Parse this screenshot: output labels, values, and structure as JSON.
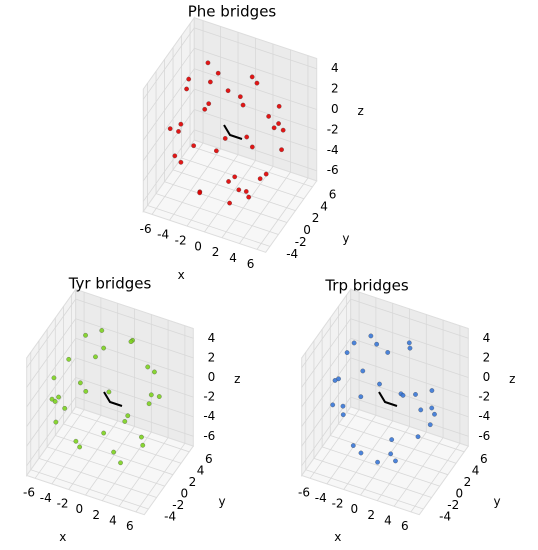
{
  "chart_data": [
    {
      "type": "scatter3d",
      "title": "Phe bridges",
      "xlabel": "x",
      "ylabel": "y",
      "zlabel": "z",
      "color": "#e00000",
      "xlim": [
        -7,
        7
      ],
      "ylim": [
        -5,
        7
      ],
      "zlim": [
        -7,
        5
      ],
      "xticks": [
        -6,
        -4,
        -2,
        0,
        2,
        4,
        6
      ],
      "yticks": [
        -4,
        -2,
        0,
        2,
        4,
        6
      ],
      "zticks": [
        -6,
        -4,
        -2,
        0,
        2,
        4
      ],
      "x": [
        5.8,
        -5.5,
        3.2,
        -2.9,
        0.8,
        1.2,
        4.1,
        -4.3,
        2.5,
        -1.8,
        5.1,
        -5.0,
        0.3,
        -0.6,
        3.7,
        -3.3,
        4.6,
        -4.8,
        1.9,
        -2.1,
        2.8,
        -1.4,
        5.4,
        -3.8,
        0.9,
        -0.2,
        3.4,
        -5.6,
        4.0,
        -2.6,
        1.6,
        -3.9,
        2.2,
        -4.4,
        5.2,
        0.1,
        -1.1,
        3.0
      ],
      "y": [
        1.2,
        2.1,
        4.8,
        -4.6,
        -1.1,
        0.6,
        -3.5,
        3.9,
        2.2,
        -2.4,
        -0.4,
        -1.7,
        5.6,
        -4.9,
        1.9,
        2.6,
        3.1,
        -3.2,
        -3.0,
        4.2,
        -5.1,
        1.1,
        2.4,
        -0.9,
        4.4,
        -3.6,
        -1.6,
        0.4,
        4.2,
        -5.2,
        -5.5,
        4.4,
        0.3,
        1.5,
        -2.6,
        1.9,
        5.7,
        -2.1
      ],
      "z": [
        -0.9,
        1.3,
        -1.6,
        2.5,
        4.8,
        -5.8,
        2.6,
        -1.4,
        4.1,
        -5.1,
        3.1,
        -2.9,
        2.1,
        -3.4,
        -4.3,
        4.2,
        1.9,
        0.7,
        -4.8,
        -3.8,
        -1.2,
        4.6,
        0.2,
        4.5,
        -3.9,
        4.7,
        -4.6,
        -1.9,
        -0.6,
        -0.8,
        1.7,
        1.1,
        -5.5,
        -3.6,
        -1.7,
        -5.6,
        -0.3,
        4.6
      ]
    },
    {
      "type": "scatter3d",
      "title": "Tyr bridges",
      "xlabel": "x",
      "ylabel": "y",
      "zlabel": "z",
      "color": "#7ed321",
      "xlim": [
        -7,
        7
      ],
      "ylim": [
        -5,
        7
      ],
      "zlim": [
        -7,
        5
      ],
      "xticks": [
        -6,
        -4,
        -2,
        0,
        2,
        4,
        6
      ],
      "yticks": [
        -4,
        -2,
        0,
        2,
        4,
        6
      ],
      "zticks": [
        -6,
        -4,
        -2,
        0,
        2,
        4
      ],
      "x": [
        -5.7,
        5.3,
        -3.4,
        3.0,
        -0.9,
        -1.0,
        -4.0,
        4.4,
        -2.6,
        1.9,
        -5.2,
        4.9,
        -0.5,
        0.7,
        -3.6,
        3.1,
        -4.5,
        4.7,
        -2.0,
        2.3,
        -2.7,
        1.5,
        -5.3,
        3.9,
        -1.0,
        0.4,
        -3.3,
        5.5,
        -4.1,
        2.5
      ],
      "y": [
        -1.0,
        -2.2,
        -4.6,
        4.4,
        1.3,
        -0.5,
        3.3,
        -3.7,
        -2.0,
        2.6,
        0.6,
        1.8,
        -5.4,
        4.7,
        -1.7,
        -2.8,
        -3.0,
        3.4,
        3.1,
        -4.0,
        5.0,
        -1.2,
        -2.3,
        1.0,
        -4.2,
        3.8,
        1.8,
        -0.2,
        -4.0,
        5.1
      ],
      "z": [
        1.0,
        -1.2,
        1.8,
        -2.3,
        -4.6,
        4.2,
        -2.4,
        1.6,
        -4.0,
        4.9,
        -2.9,
        3.0,
        -2.0,
        3.2,
        3.9,
        -4.1,
        -2.0,
        -0.5,
        4.5,
        3.6,
        1.4,
        -4.4,
        -0.3,
        -4.3,
        3.7,
        -4.5,
        4.4,
        2.0,
        0.8,
        0.9
      ]
    },
    {
      "type": "scatter3d",
      "title": "Trp bridges",
      "xlabel": "x",
      "ylabel": "y",
      "zlabel": "z",
      "color": "#3a78d8",
      "xlim": [
        -7,
        7
      ],
      "ylim": [
        -5,
        7
      ],
      "zlim": [
        -7,
        5
      ],
      "xticks": [
        -6,
        -4,
        -2,
        0,
        2,
        4,
        6
      ],
      "yticks": [
        -4,
        -2,
        0,
        2,
        4,
        6
      ],
      "zticks": [
        -6,
        -4,
        -2,
        0,
        2,
        4
      ],
      "x": [
        4.9,
        -4.6,
        2.7,
        -3.1,
        1.1,
        0.6,
        3.8,
        -3.9,
        2.0,
        -1.5,
        4.7,
        -5.3,
        0.9,
        -1.2,
        3.2,
        -2.8,
        5.0,
        -4.2,
        1.4,
        -2.5,
        3.3,
        -0.8,
        5.6,
        -3.2,
        0.2,
        -0.7,
        2.9,
        -5.1,
        4.3,
        -2.2
      ],
      "y": [
        2.0,
        2.9,
        4.2,
        -4.0,
        -0.6,
        1.4,
        -2.9,
        3.1,
        3.0,
        -1.8,
        -1.2,
        -0.9,
        5.1,
        -4.3,
        2.5,
        3.3,
        2.2,
        -2.6,
        -3.7,
        4.8,
        -4.4,
        0.6,
        1.6,
        -1.7,
        5.0,
        -3.0,
        -2.4,
        1.2,
        3.6,
        -4.7
      ],
      "z": [
        -2.5,
        2.6,
        -2.9,
        3.4,
        5.3,
        -4.9,
        3.2,
        -2.8,
        3.9,
        -5.0,
        2.4,
        -1.7,
        2.9,
        -2.7,
        -4.5,
        3.6,
        0.9,
        2.1,
        -4.0,
        -2.1,
        -2.2,
        4.9,
        -1.0,
        4.7,
        -2.6,
        4.3,
        -4.2,
        -3.0,
        -1.9,
        0.4
      ]
    }
  ]
}
